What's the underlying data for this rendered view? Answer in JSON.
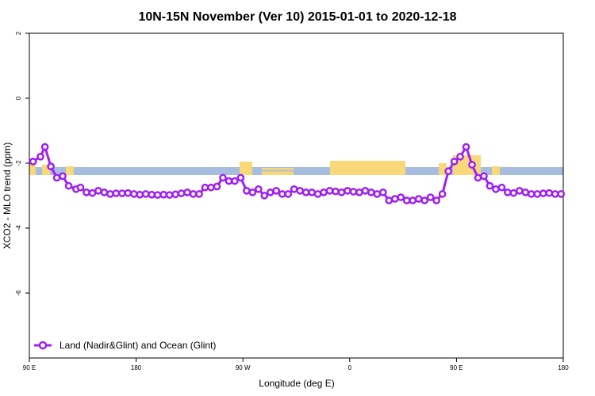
{
  "chart_data": {
    "type": "line",
    "title": "10N-15N November (Ver 10)   2015-01-01 to 2020-12-18",
    "xlabel": "Longitude (deg E)",
    "ylabel": "XCO2 - MLO trend (ppm)",
    "xlim": [
      90,
      450
    ],
    "ylim": [
      -8,
      2
    ],
    "x_ticks": [
      {
        "value": 90,
        "label": "90 E"
      },
      {
        "value": 162,
        "label": "180"
      },
      {
        "value": 234,
        "label": "90 W"
      },
      {
        "value": 306,
        "label": "0"
      },
      {
        "value": 378,
        "label": "90 E"
      },
      {
        "value": 450,
        "label": "180"
      }
    ],
    "y_ticks": [
      {
        "value": 2,
        "label": "2"
      },
      {
        "value": 0,
        "label": "0"
      },
      {
        "value": -2,
        "label": "-2"
      },
      {
        "value": -4,
        "label": "-4"
      },
      {
        "value": -6,
        "label": "-6"
      }
    ],
    "legend": {
      "position": "bottom-left"
    },
    "series": [
      {
        "name": "Land (Nadir&Glint) and Ocean (Glint)",
        "color": "#a020f0",
        "x": [
          92.5,
          97.5,
          100.5,
          104.5,
          108.5,
          112.5,
          116.5,
          121.5,
          124.5,
          128.5,
          132.5,
          136.5,
          140.5,
          144.5,
          148.5,
          152.5,
          156.5,
          160.5,
          164.5,
          168.5,
          172.5,
          176.5,
          180.5,
          184.5,
          188.5,
          192.5,
          196.5,
          200.5,
          204.5,
          208.5,
          212.5,
          216.5,
          220.5,
          224.5,
          228.5,
          232.5,
          236.5,
          240.5,
          244.5,
          248.5,
          252.5,
          256.5,
          260.5,
          264.5,
          268.5,
          272.5,
          276.5,
          280.5,
          284.5,
          288.5,
          292.5,
          296.5,
          300.5,
          304.5,
          308.5,
          312.5,
          316.5,
          320.5,
          324.5,
          328.5,
          332.5,
          336.5,
          340.5,
          344.5,
          348.5,
          352.5,
          356.5,
          360.5,
          364.5,
          368.5,
          372.5,
          376.5,
          380.5,
          384.5,
          388.5,
          392.5,
          396.5,
          400.5,
          404.5,
          408.5,
          412.5,
          416.5,
          420.5,
          424.5,
          428.5,
          432.5,
          436.5,
          440.5,
          444.5,
          448.5
        ],
        "values": [
          -1.95,
          -1.8,
          -1.5,
          -2.1,
          -2.45,
          -2.4,
          -2.7,
          -2.8,
          -2.75,
          -2.9,
          -2.92,
          -2.85,
          -2.9,
          -2.95,
          -2.93,
          -2.93,
          -2.92,
          -2.95,
          -2.97,
          -2.95,
          -2.97,
          -2.98,
          -2.97,
          -2.98,
          -2.96,
          -2.93,
          -2.9,
          -2.95,
          -2.95,
          -2.75,
          -2.75,
          -2.72,
          -2.45,
          -2.55,
          -2.55,
          -2.45,
          -2.85,
          -2.9,
          -2.8,
          -3.0,
          -2.9,
          -2.85,
          -2.95,
          -2.95,
          -2.8,
          -2.85,
          -2.9,
          -2.9,
          -2.95,
          -2.9,
          -2.85,
          -2.87,
          -2.9,
          -2.85,
          -2.88,
          -2.9,
          -2.85,
          -2.9,
          -2.95,
          -2.9,
          -3.15,
          -3.1,
          -3.05,
          -3.15,
          -3.15,
          -3.1,
          -3.15,
          -3.05,
          -3.15,
          -2.95,
          -2.25,
          -1.95,
          -1.8,
          -1.5,
          -2.05,
          -2.45,
          -2.4,
          -2.7,
          -2.8,
          -2.75,
          -2.9,
          -2.92,
          -2.85,
          -2.9,
          -2.95,
          -2.95,
          -2.93,
          -2.92,
          -2.95,
          -2.95
        ]
      }
    ]
  }
}
